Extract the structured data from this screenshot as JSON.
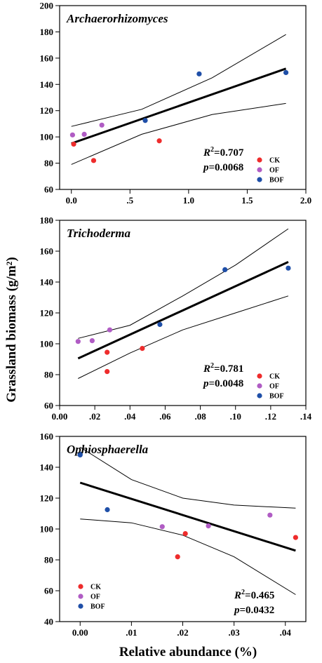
{
  "shared": {
    "ylabel": "Grassland biomass (g/m²)",
    "xlabel": "Relative abundance (%)",
    "legend": [
      {
        "label": "CK",
        "color": "#ee2c2c"
      },
      {
        "label": "OF",
        "color": "#b05cc4"
      },
      {
        "label": "BOF",
        "color": "#1f4fa8"
      }
    ]
  },
  "chart_data": [
    {
      "type": "scatter",
      "title": "Archaerorhizomyces",
      "r2_label": "=0.707",
      "p_label": "=0.0068",
      "legend_placement": "bottom-right",
      "xlim": [
        -0.1,
        2.0
      ],
      "ylim": [
        60,
        200
      ],
      "xticks": [
        0.0,
        0.5,
        1.0,
        1.5,
        2.0
      ],
      "xtick_labels": [
        "0.0",
        ".5",
        "1.0",
        "1.5",
        "2.0"
      ],
      "yticks": [
        60,
        80,
        100,
        120,
        140,
        160,
        180,
        200
      ],
      "ytick_labels": [
        "60",
        "80",
        "100",
        "120",
        "140",
        "160",
        "180",
        "200"
      ],
      "series": [
        {
          "name": "CK",
          "color": "#ee2c2c",
          "points": [
            [
              0.02,
              94.5
            ],
            [
              0.19,
              82
            ],
            [
              0.75,
              97
            ]
          ]
        },
        {
          "name": "OF",
          "color": "#b05cc4",
          "points": [
            [
              0.01,
              101.5
            ],
            [
              0.11,
              102
            ],
            [
              0.26,
              109
            ]
          ]
        },
        {
          "name": "BOF",
          "color": "#1f4fa8",
          "points": [
            [
              0.63,
              112.5
            ],
            [
              1.09,
              148
            ],
            [
              1.83,
              149
            ]
          ]
        }
      ],
      "fit": {
        "x0": 0.0,
        "x1": 1.83,
        "y0": 95,
        "y1": 152
      },
      "upper_band": [
        [
          0.0,
          108
        ],
        [
          0.6,
          121
        ],
        [
          1.2,
          145
        ],
        [
          1.83,
          178
        ]
      ],
      "lower_band": [
        [
          0.0,
          79
        ],
        [
          0.6,
          102
        ],
        [
          1.2,
          117
        ],
        [
          1.83,
          125.5
        ]
      ]
    },
    {
      "type": "scatter",
      "title": "Trichoderma",
      "r2_label": "=0.781",
      "p_label": "=0.0048",
      "legend_placement": "bottom-right",
      "xlim": [
        0.0,
        0.14
      ],
      "ylim": [
        60,
        180
      ],
      "xticks": [
        0.0,
        0.02,
        0.04,
        0.06,
        0.08,
        0.1,
        0.12,
        0.14
      ],
      "xtick_labels": [
        "0.00",
        ".02",
        ".04",
        ".06",
        ".08",
        ".10",
        ".12",
        ".14"
      ],
      "yticks": [
        60,
        80,
        100,
        120,
        140,
        160,
        180
      ],
      "ytick_labels": [
        "60",
        "80",
        "100",
        "120",
        "140",
        "160",
        "180"
      ],
      "series": [
        {
          "name": "CK",
          "color": "#ee2c2c",
          "points": [
            [
              0.027,
              82
            ],
            [
              0.027,
              94.5
            ],
            [
              0.047,
              97
            ]
          ]
        },
        {
          "name": "OF",
          "color": "#b05cc4",
          "points": [
            [
              0.0105,
              101.5
            ],
            [
              0.0185,
              102
            ],
            [
              0.0285,
              109
            ]
          ]
        },
        {
          "name": "BOF",
          "color": "#1f4fa8",
          "points": [
            [
              0.057,
              112.5
            ],
            [
              0.094,
              148
            ],
            [
              0.13,
              149
            ]
          ]
        }
      ],
      "fit": {
        "x0": 0.0105,
        "x1": 0.13,
        "y0": 90.5,
        "y1": 153
      },
      "upper_band": [
        [
          0.0105,
          103.5
        ],
        [
          0.04,
          112
        ],
        [
          0.07,
          131
        ],
        [
          0.1,
          151
        ],
        [
          0.13,
          174.5
        ]
      ],
      "lower_band": [
        [
          0.0105,
          77.5
        ],
        [
          0.04,
          94
        ],
        [
          0.07,
          109
        ],
        [
          0.1,
          120
        ],
        [
          0.13,
          131
        ]
      ]
    },
    {
      "type": "scatter",
      "title": "Ophiosphaerella",
      "r2_label": "=0.465",
      "p_label": "=0.0432",
      "legend_placement": "bottom-left",
      "xlim": [
        -0.004,
        0.044
      ],
      "ylim": [
        40,
        160
      ],
      "xticks": [
        0.0,
        0.01,
        0.02,
        0.03,
        0.04
      ],
      "xtick_labels": [
        "0.00",
        ".01",
        ".02",
        ".03",
        ".04"
      ],
      "yticks": [
        40,
        60,
        80,
        100,
        120,
        140,
        160
      ],
      "ytick_labels": [
        "40",
        "60",
        "80",
        "100",
        "120",
        "140",
        "160"
      ],
      "series": [
        {
          "name": "CK",
          "color": "#ee2c2c",
          "points": [
            [
              0.019,
              82
            ],
            [
              0.0205,
              97
            ],
            [
              0.042,
              94.5
            ]
          ]
        },
        {
          "name": "OF",
          "color": "#b05cc4",
          "points": [
            [
              0.016,
              101.5
            ],
            [
              0.025,
              102
            ],
            [
              0.037,
              109
            ]
          ]
        },
        {
          "name": "BOF",
          "color": "#1f4fa8",
          "points": [
            [
              0.0,
              148.5
            ],
            [
              0.0,
              148
            ],
            [
              0.0053,
              112.5
            ]
          ]
        }
      ],
      "fit": {
        "x0": 0.0,
        "x1": 0.042,
        "y0": 130,
        "y1": 86
      },
      "upper_band": [
        [
          0.0,
          153
        ],
        [
          0.01,
          132
        ],
        [
          0.02,
          120
        ],
        [
          0.03,
          115.5
        ],
        [
          0.042,
          113.5
        ]
      ],
      "lower_band": [
        [
          0.0,
          106.5
        ],
        [
          0.01,
          104
        ],
        [
          0.02,
          96
        ],
        [
          0.03,
          82
        ],
        [
          0.042,
          57.5
        ]
      ]
    }
  ]
}
